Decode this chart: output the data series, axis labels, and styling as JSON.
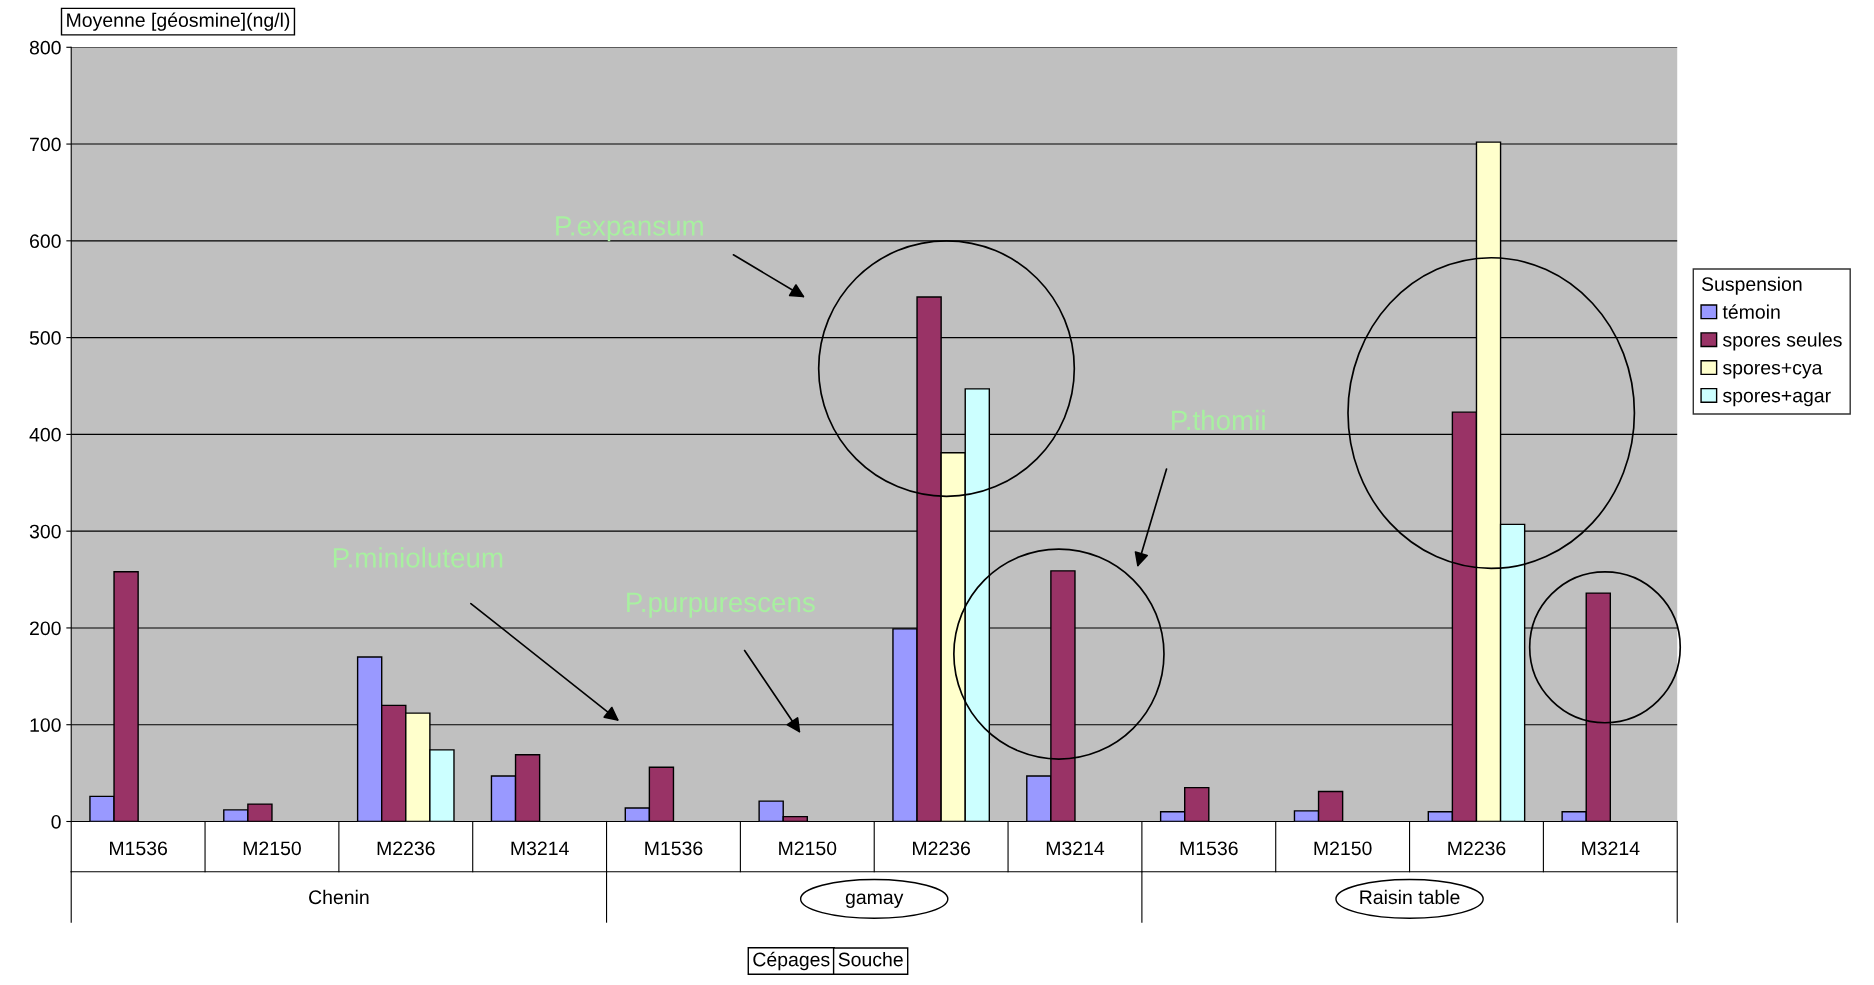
{
  "chart_data": {
    "type": "bar",
    "ylabel": "Moyenne [géosmine](ng/l)",
    "legend_title": "Suspension",
    "categories": [
      "M1536",
      "M2150",
      "M2236",
      "M3214",
      "M1536",
      "M2150",
      "M2236",
      "M3214",
      "M1536",
      "M2150",
      "M2236",
      "M3214"
    ],
    "series": [
      {
        "name": "témoin",
        "color": "#9999ff",
        "values": [
          26,
          12,
          170,
          47,
          14,
          21,
          199,
          47,
          10,
          11,
          10,
          10
        ]
      },
      {
        "name": "spores seules",
        "color": "#993366",
        "values": [
          258,
          18,
          120,
          69,
          56,
          5,
          542,
          259,
          35,
          31,
          423,
          236
        ]
      },
      {
        "name": "spores+cya",
        "color": "#ffffcc",
        "values": [
          null,
          null,
          112,
          null,
          null,
          null,
          381,
          null,
          null,
          null,
          702,
          null
        ]
      },
      {
        "name": "spores+agar",
        "color": "#ccffff",
        "values": [
          null,
          null,
          74,
          null,
          null,
          null,
          447,
          null,
          null,
          null,
          307,
          null
        ]
      }
    ],
    "ylim": [
      0,
      800
    ],
    "yticks": [
      0,
      100,
      200,
      300,
      400,
      500,
      600,
      700,
      800
    ],
    "grid": "y",
    "legend": "right",
    "annotations": [
      "P.expansum",
      "P.thomii",
      "P.minioluteum",
      "P.purpurescens",
      "Chenin",
      "gamay",
      "Raisin table",
      "Cépages",
      "Souche"
    ]
  }
}
